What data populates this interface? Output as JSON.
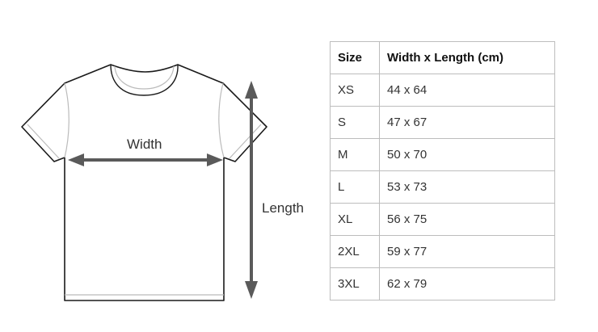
{
  "diagram": {
    "width_label": "Width",
    "length_label": "Length",
    "arrow_color": "#5a5a5a",
    "outline_color": "#1a1a1a"
  },
  "table": {
    "headers": [
      "Size",
      "Width x Length (cm)"
    ],
    "rows": [
      {
        "size": "XS",
        "dims": "44 x 64"
      },
      {
        "size": "S",
        "dims": "47 x 67"
      },
      {
        "size": "M",
        "dims": "50 x 70"
      },
      {
        "size": "L",
        "dims": "53 x 73"
      },
      {
        "size": "XL",
        "dims": "56 x 75"
      },
      {
        "size": "2XL",
        "dims": "59 x 77"
      },
      {
        "size": "3XL",
        "dims": "62 x 79"
      }
    ]
  }
}
